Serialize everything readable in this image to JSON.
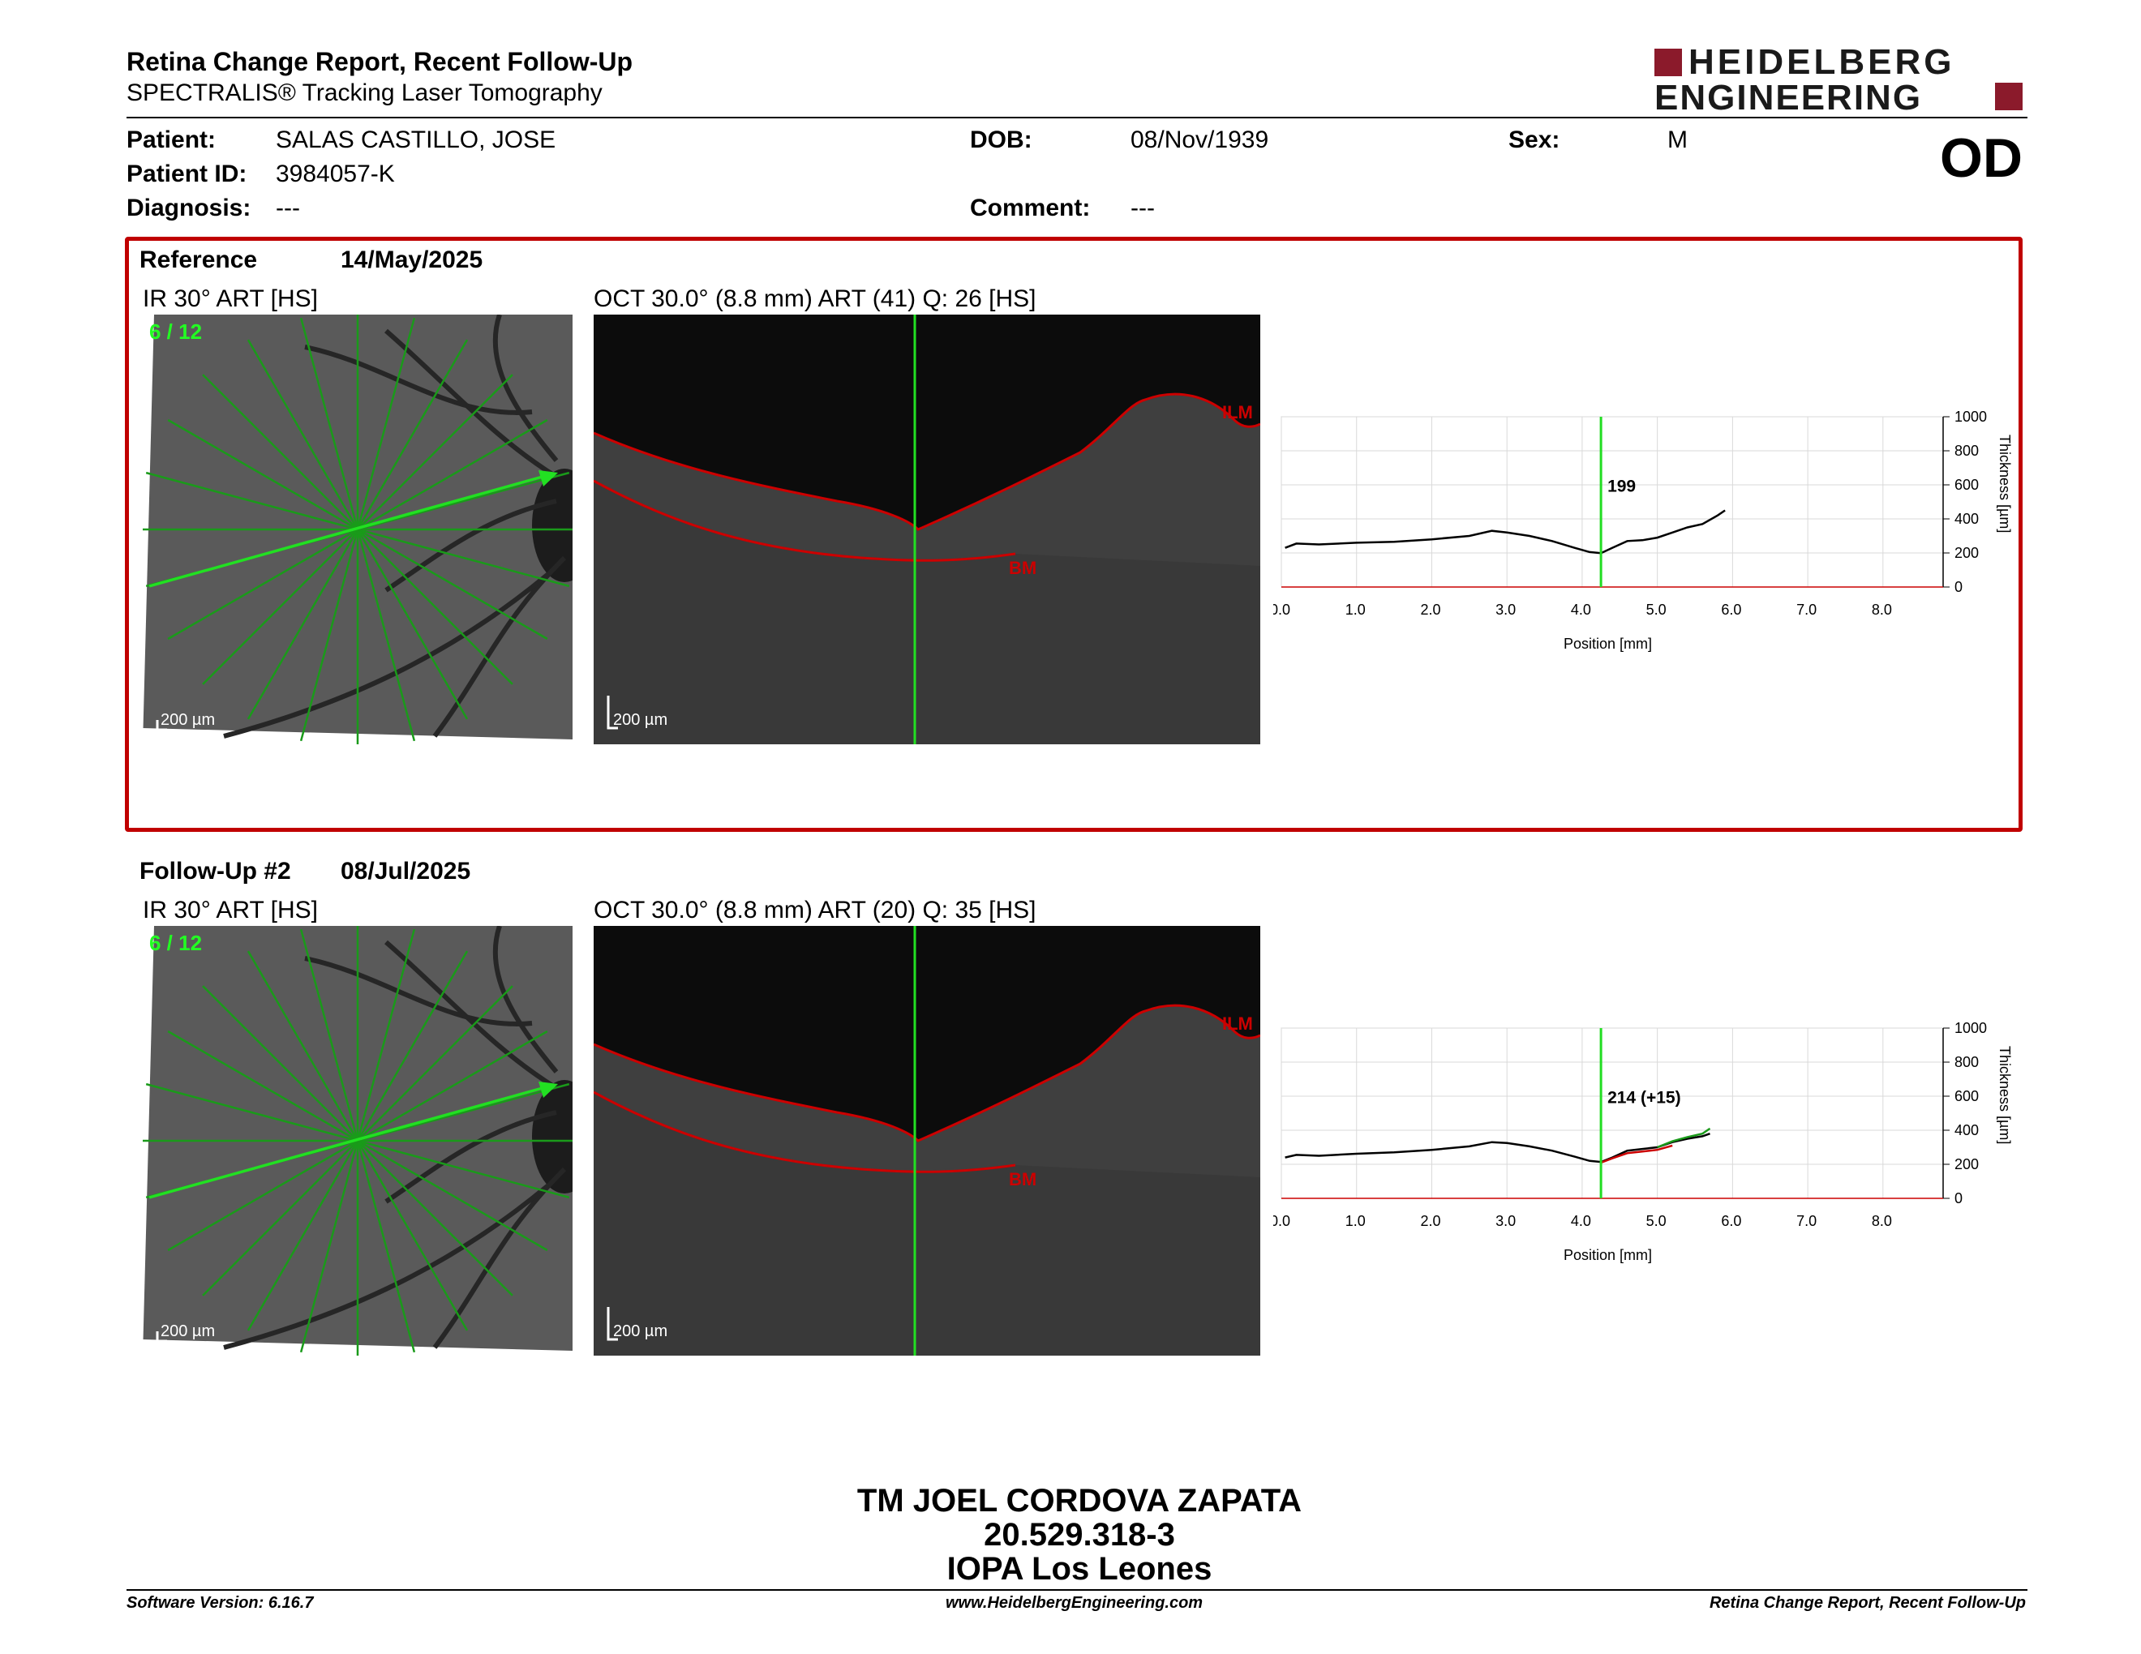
{
  "report": {
    "title": "Retina Change Report, Recent Follow-Up",
    "subtitle": "SPECTRALIS® Tracking Laser Tomography",
    "eye": "OD"
  },
  "brand": {
    "line1": "HEIDELBERG",
    "line2": "ENGINEERING",
    "color": "#8b1a2b"
  },
  "patient": {
    "patient_label": "Patient:",
    "patient_value": "SALAS CASTILLO, JOSE",
    "id_label": "Patient ID:",
    "id_value": "3984057-K",
    "diagnosis_label": "Diagnosis:",
    "diagnosis_value": "---",
    "dob_label": "DOB:",
    "dob_value": "08/Nov/1939",
    "comment_label": "Comment:",
    "comment_value": "---",
    "sex_label": "Sex:",
    "sex_value": "M"
  },
  "reference": {
    "label": "Reference",
    "date": "14/May/2025",
    "ir_title": "IR 30° ART [HS]",
    "ir_scan": "6 / 12",
    "ir_scale": "200 µm",
    "oct_title": "OCT 30.0° (8.8 mm) ART (41) Q: 26 [HS]",
    "oct_scale": "200 µm",
    "ilm": "ILM",
    "bm": "BM",
    "marker_label": "199"
  },
  "followup": {
    "label": "Follow-Up #2",
    "date": "08/Jul/2025",
    "ir_title": "IR 30° ART [HS]",
    "ir_scan": "6 / 12",
    "ir_scale": "200 µm",
    "oct_title": "OCT 30.0° (8.8 mm) ART (20) Q: 35 [HS]",
    "oct_scale": "200 µm",
    "ilm": "ILM",
    "bm": "BM",
    "marker_label": "214 (+15)"
  },
  "signature": {
    "line1": "TM JOEL CORDOVA ZAPATA",
    "line2": "20.529.318-3",
    "line3": "IOPA Los Leones"
  },
  "footer": {
    "left": "Software Version: 6.16.7",
    "center": "www.HeidelbergEngineering.com",
    "right": "Retina Change Report, Recent Follow-Up"
  },
  "colors": {
    "box_border": "#c00000",
    "scan_line": "#00ff00",
    "segmentation": "#cc0000"
  },
  "chart_data": [
    {
      "type": "line",
      "xlabel": "Position [mm]",
      "ylabel": "Thickness [µm]",
      "xlim": [
        0,
        8.8
      ],
      "ylim": [
        0,
        1000
      ],
      "x_ticks": [
        "0.0",
        "1.0",
        "2.0",
        "3.0",
        "4.0",
        "5.0",
        "6.0",
        "7.0",
        "8.0"
      ],
      "y_ticks": [
        "0",
        "200",
        "400",
        "600",
        "800",
        "1000"
      ],
      "grid": true,
      "marker_x": 4.25,
      "marker_label": "199",
      "series": [
        {
          "color": "#000000",
          "x": [
            0.05,
            0.2,
            0.5,
            1.0,
            1.5,
            2.0,
            2.5,
            2.8,
            3.0,
            3.3,
            3.6,
            3.9,
            4.1,
            4.25,
            4.4,
            4.6,
            4.8,
            5.0,
            5.2,
            5.4,
            5.6,
            5.8,
            5.9
          ],
          "y": [
            230,
            255,
            250,
            260,
            265,
            280,
            300,
            330,
            320,
            300,
            270,
            230,
            205,
            199,
            230,
            270,
            275,
            290,
            320,
            350,
            370,
            420,
            450
          ]
        }
      ]
    },
    {
      "type": "line",
      "xlabel": "Position [mm]",
      "ylabel": "Thickness [µm]",
      "xlim": [
        0,
        8.8
      ],
      "ylim": [
        0,
        1000
      ],
      "x_ticks": [
        "0.0",
        "1.0",
        "2.0",
        "3.0",
        "4.0",
        "5.0",
        "6.0",
        "7.0",
        "8.0"
      ],
      "y_ticks": [
        "0",
        "200",
        "400",
        "600",
        "800",
        "1000"
      ],
      "grid": true,
      "marker_x": 4.25,
      "marker_label": "214 (+15)",
      "series": [
        {
          "color": "#000000",
          "x": [
            0.05,
            0.2,
            0.5,
            1.0,
            1.5,
            2.0,
            2.5,
            2.8,
            3.0,
            3.3,
            3.6,
            3.9,
            4.1,
            4.25,
            4.4,
            4.6,
            4.8,
            5.0,
            5.2,
            5.4,
            5.6,
            5.7
          ],
          "y": [
            240,
            255,
            250,
            262,
            270,
            285,
            305,
            330,
            325,
            305,
            280,
            245,
            220,
            214,
            240,
            280,
            290,
            300,
            330,
            350,
            365,
            380
          ]
        },
        {
          "color": "#cc0000",
          "x": [
            4.25,
            4.4,
            4.6,
            4.8,
            5.0,
            5.2
          ],
          "y": [
            210,
            235,
            265,
            275,
            285,
            310
          ]
        },
        {
          "color": "#1a9a1a",
          "x": [
            5.0,
            5.2,
            5.4,
            5.6,
            5.7
          ],
          "y": [
            300,
            335,
            360,
            380,
            410
          ]
        }
      ]
    }
  ]
}
